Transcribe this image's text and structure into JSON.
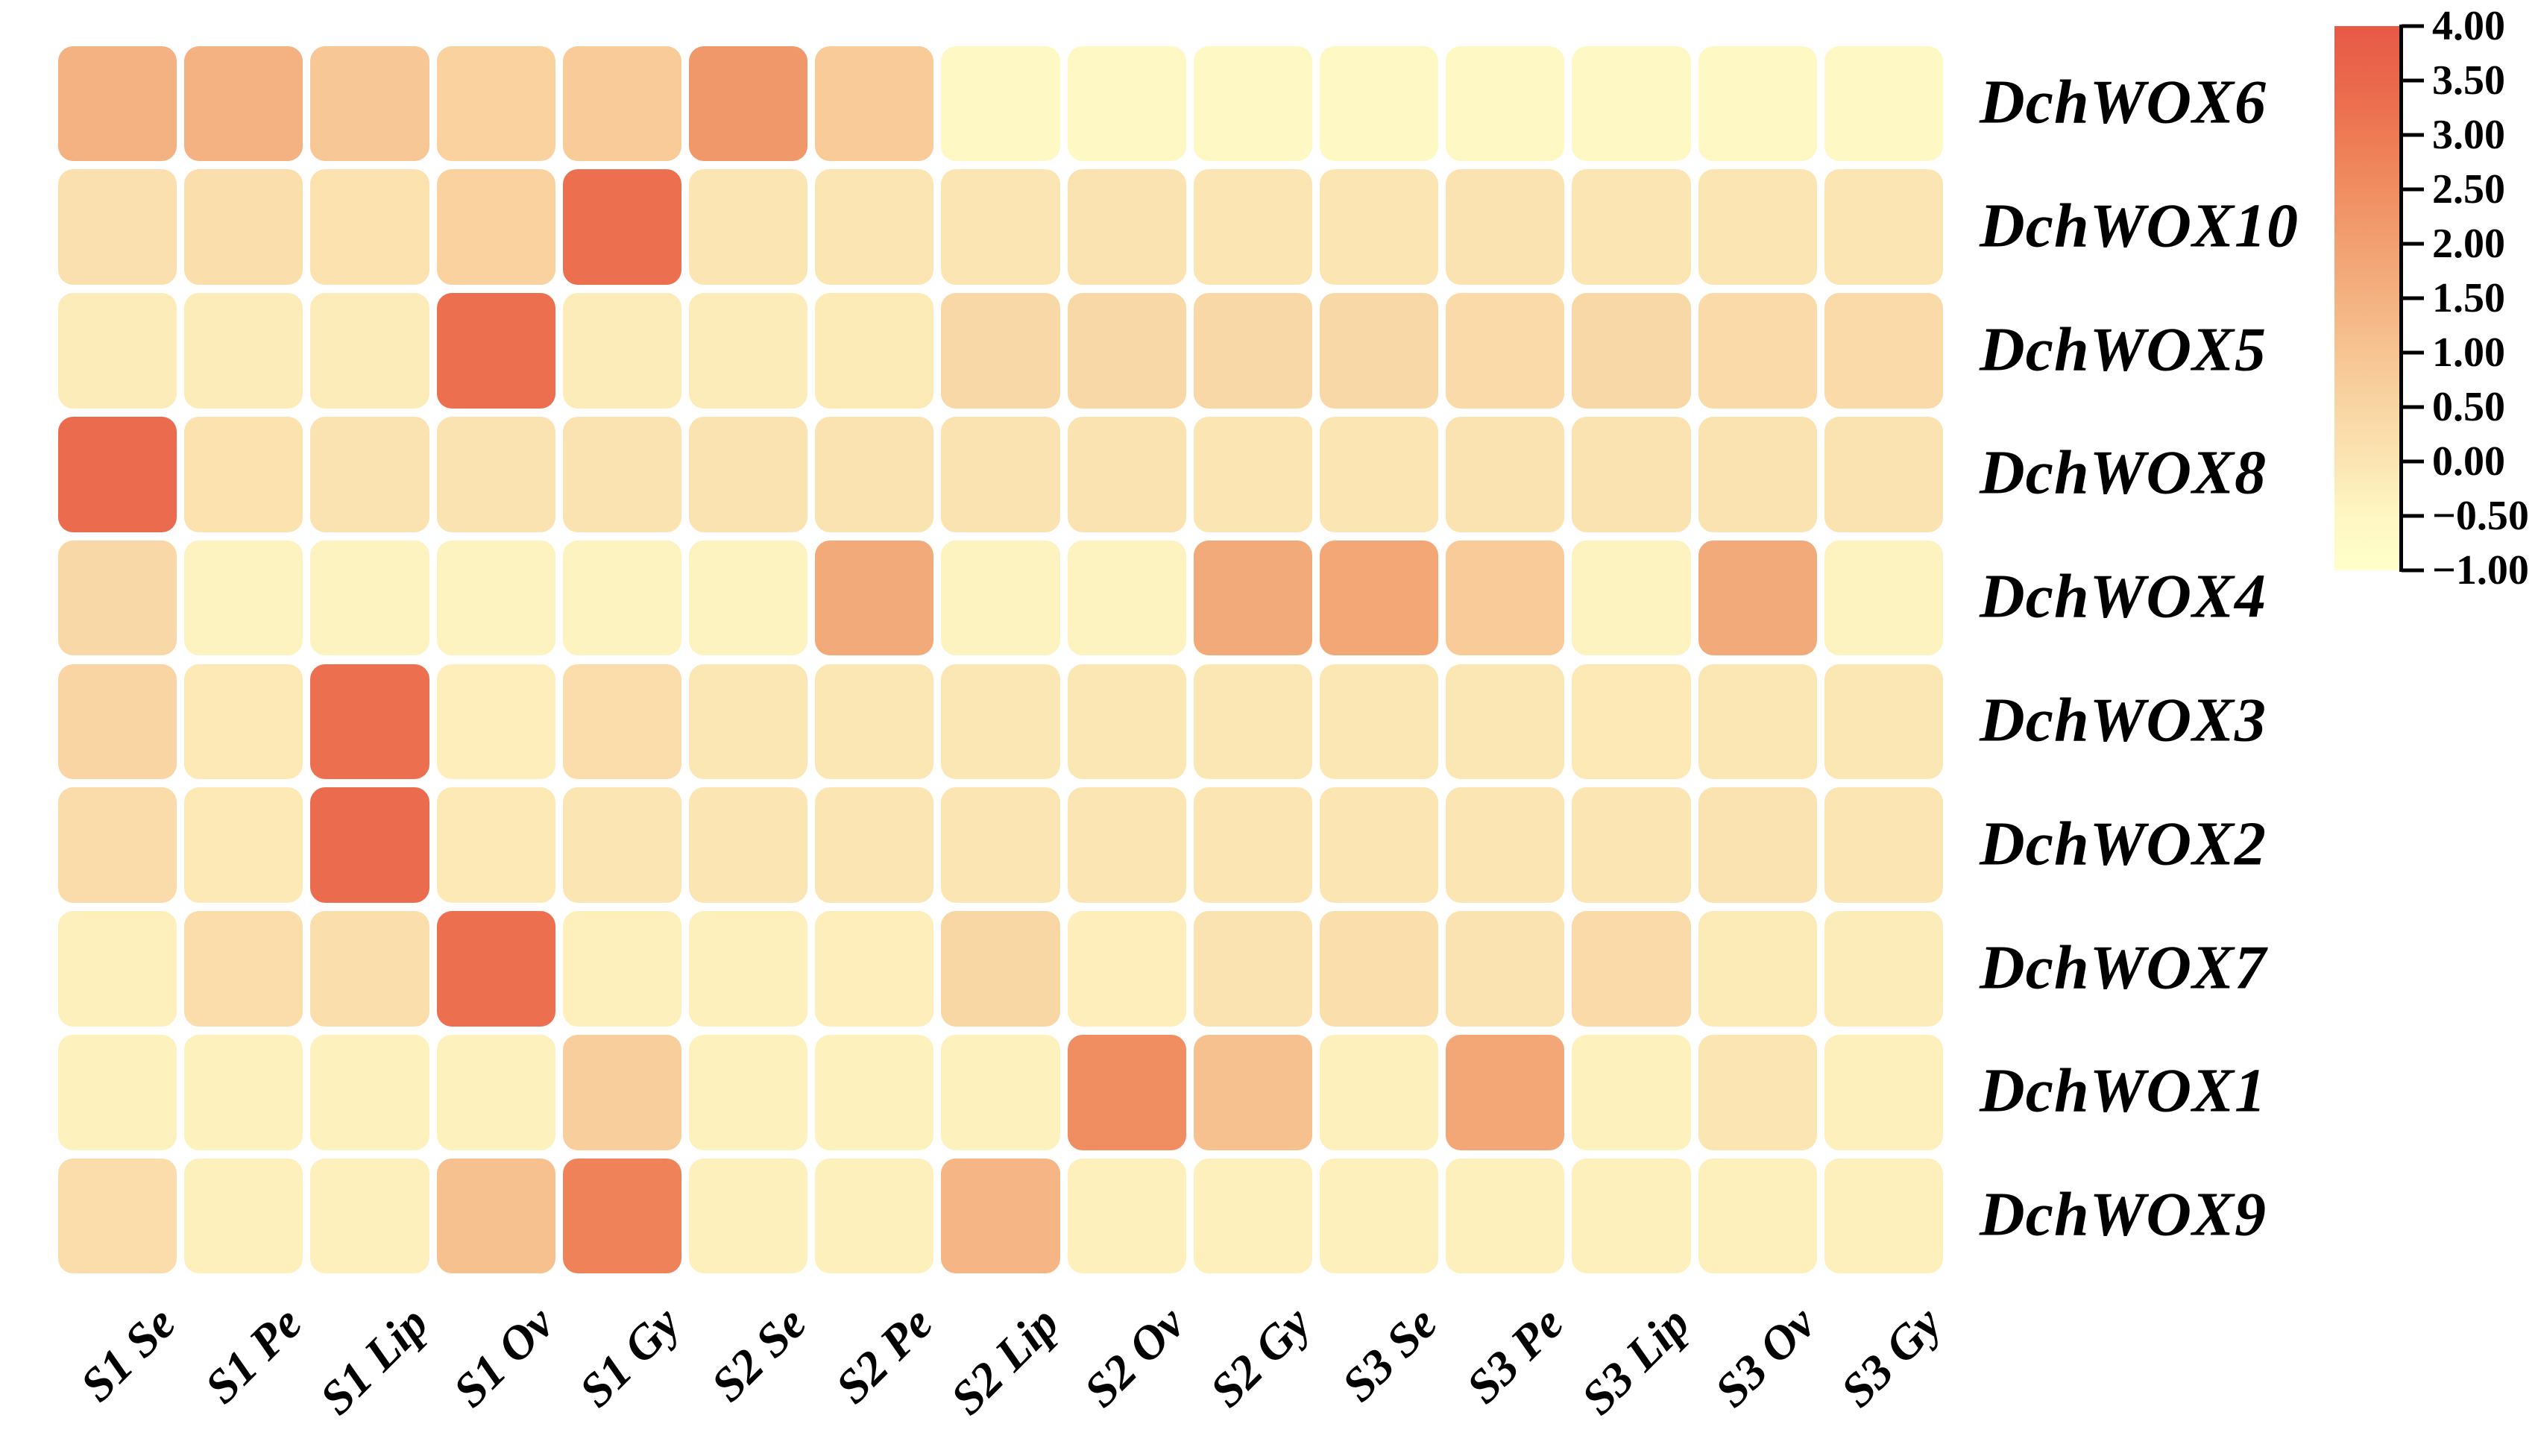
{
  "figure": {
    "background_color": "#ffffff",
    "description": "Heatmap of DchWOX gene expression across flower development stages and tissues"
  },
  "chart_data": {
    "type": "heatmap",
    "columns": [
      "S1 Se",
      "S1 Pe",
      "S1 Lip",
      "S1 Ov",
      "S1 Gy",
      "S2 Se",
      "S2 Pe",
      "S2 Lip",
      "S2 Ov",
      "S2 Gy",
      "S3 Se",
      "S3 Pe",
      "S3 Lip",
      "S3 Ov",
      "S3 Gy"
    ],
    "rows": [
      "DchWOX6",
      "DchWOX10",
      "DchWOX5",
      "DchWOX8",
      "DchWOX4",
      "DchWOX3",
      "DchWOX2",
      "DchWOX7",
      "DchWOX1",
      "DchWOX9"
    ],
    "values": [
      [
        1.5,
        1.5,
        0.9,
        0.6,
        0.8,
        2.2,
        0.8,
        -0.6,
        -0.6,
        -0.6,
        -0.6,
        -0.6,
        -0.6,
        -0.6,
        -0.6
      ],
      [
        0.15,
        0.2,
        0.1,
        0.6,
        3.3,
        0.0,
        0.0,
        0.0,
        0.05,
        0.0,
        0.0,
        0.05,
        0.0,
        0.0,
        0.0
      ],
      [
        -0.2,
        -0.2,
        -0.2,
        3.3,
        -0.2,
        -0.2,
        -0.15,
        0.4,
        0.4,
        0.4,
        0.4,
        0.35,
        0.4,
        0.35,
        0.35
      ],
      [
        3.4,
        0.1,
        0.05,
        0.05,
        0.05,
        0.05,
        0.05,
        0.05,
        0.05,
        0.0,
        0.0,
        0.05,
        0.05,
        0.05,
        0.05
      ],
      [
        0.4,
        -0.4,
        -0.4,
        -0.4,
        -0.4,
        -0.4,
        1.7,
        -0.4,
        -0.4,
        1.7,
        1.8,
        0.8,
        -0.4,
        1.7,
        -0.4
      ],
      [
        0.5,
        -0.1,
        3.3,
        -0.25,
        0.25,
        -0.05,
        -0.05,
        -0.05,
        -0.05,
        -0.05,
        -0.05,
        -0.05,
        -0.1,
        -0.05,
        -0.05
      ],
      [
        0.3,
        -0.1,
        3.4,
        -0.1,
        0.0,
        0.0,
        0.0,
        0.0,
        0.0,
        0.0,
        0.0,
        0.0,
        0.0,
        0.05,
        0.0
      ],
      [
        -0.3,
        0.25,
        0.2,
        3.3,
        -0.3,
        -0.3,
        -0.25,
        0.45,
        -0.25,
        0.05,
        0.2,
        0.05,
        0.35,
        -0.15,
        -0.2
      ],
      [
        -0.35,
        -0.35,
        -0.35,
        -0.35,
        0.7,
        -0.35,
        -0.35,
        -0.35,
        2.5,
        1.1,
        -0.3,
        1.8,
        -0.35,
        0.0,
        -0.3
      ],
      [
        0.25,
        -0.3,
        -0.3,
        1.1,
        2.8,
        -0.3,
        -0.3,
        1.4,
        -0.3,
        -0.3,
        -0.3,
        -0.3,
        -0.3,
        -0.3,
        -0.3
      ]
    ],
    "value_range": [
      -1.0,
      4.0
    ],
    "grid": false,
    "legend_position": "right",
    "colorbar": {
      "tick_labels": [
        "4.00",
        "3.50",
        "3.00",
        "2.50",
        "2.00",
        "1.50",
        "1.00",
        "0.50",
        "0.00",
        "−0.50",
        "−1.00"
      ],
      "tick_values": [
        4.0,
        3.5,
        3.0,
        2.5,
        2.0,
        1.5,
        1.0,
        0.5,
        0.0,
        -0.5,
        -1.0
      ]
    },
    "color_scale_anchors": [
      {
        "value": -1.0,
        "color": "#FFFFC9"
      },
      {
        "value": -0.5,
        "color": "#FEF7C3"
      },
      {
        "value": 0.0,
        "color": "#FBE5B2"
      },
      {
        "value": 0.5,
        "color": "#F9D5A4"
      },
      {
        "value": 1.0,
        "color": "#F7C492"
      },
      {
        "value": 1.5,
        "color": "#F4B181"
      },
      {
        "value": 2.0,
        "color": "#F2A071"
      },
      {
        "value": 2.5,
        "color": "#F08D61"
      },
      {
        "value": 3.0,
        "color": "#EE7A54"
      },
      {
        "value": 3.5,
        "color": "#EA674C"
      },
      {
        "value": 4.0,
        "color": "#E75A46"
      }
    ]
  }
}
